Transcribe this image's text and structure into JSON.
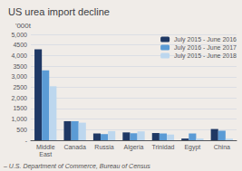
{
  "chart_data": {
    "type": "bar",
    "title": "US urea import decline",
    "y_label": "'000t",
    "annotations": [
      "– U.S. Department of Commerce, Bureau of Census"
    ],
    "categories": [
      "Middle\nEast",
      "Canada",
      "Russia",
      "Algeria",
      "Trinidad",
      "Egypt",
      "China"
    ],
    "series": [
      {
        "name": "July 2015 - June 2016",
        "color": "#1f3864",
        "values": [
          4300,
          900,
          320,
          370,
          340,
          80,
          530
        ]
      },
      {
        "name": "July 2016 - June 2017",
        "color": "#5b9bd5",
        "values": [
          3300,
          900,
          290,
          330,
          320,
          320,
          450
        ]
      },
      {
        "name": "July 2015 - June 2018",
        "color": "#bdd7ee",
        "values": [
          2550,
          830,
          430,
          420,
          270,
          80,
          70
        ]
      }
    ],
    "ylim": [
      0,
      5000
    ],
    "yticks": [
      {
        "value": 0,
        "label": "-"
      },
      500,
      {
        "value": 1000,
        "label": "1,000"
      },
      1500,
      {
        "value": 2000,
        "label": "2,000"
      },
      2500,
      {
        "value": 3000,
        "label": "3,000"
      },
      3500,
      {
        "value": 4000,
        "label": "4,000"
      },
      4500,
      {
        "value": 5000,
        "label": "5,000"
      }
    ],
    "grid": true,
    "legend": "upper right"
  }
}
